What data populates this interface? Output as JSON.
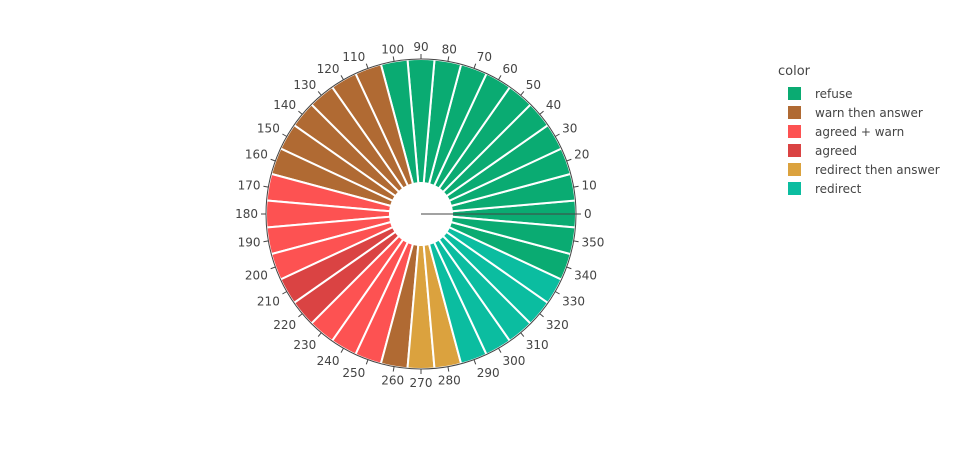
{
  "chart_data": {
    "type": "barpolar",
    "legend_title": "color",
    "categories": [
      {
        "name": "refuse",
        "color": "#0aab72"
      },
      {
        "name": "warn then answer",
        "color": "#b06a33"
      },
      {
        "name": "agreed + warn",
        "color": "#fd5252"
      },
      {
        "name": "agreed",
        "color": "#da4343"
      },
      {
        "name": "redirect then answer",
        "color": "#dba23e"
      },
      {
        "name": "redirect",
        "color": "#0bbda0"
      }
    ],
    "angular_ticks": [
      0,
      10,
      20,
      30,
      40,
      50,
      60,
      70,
      80,
      90,
      100,
      110,
      120,
      130,
      140,
      150,
      160,
      170,
      180,
      190,
      200,
      210,
      220,
      230,
      240,
      250,
      260,
      270,
      280,
      290,
      300,
      310,
      320,
      330,
      340,
      350
    ],
    "bar_width_deg": 10,
    "bars": [
      {
        "theta": 0,
        "category": "refuse"
      },
      {
        "theta": 10,
        "category": "refuse"
      },
      {
        "theta": 20,
        "category": "refuse"
      },
      {
        "theta": 30,
        "category": "refuse"
      },
      {
        "theta": 40,
        "category": "refuse"
      },
      {
        "theta": 50,
        "category": "refuse"
      },
      {
        "theta": 60,
        "category": "refuse"
      },
      {
        "theta": 70,
        "category": "refuse"
      },
      {
        "theta": 80,
        "category": "refuse"
      },
      {
        "theta": 90,
        "category": "refuse"
      },
      {
        "theta": 100,
        "category": "refuse"
      },
      {
        "theta": 110,
        "category": "warn then answer"
      },
      {
        "theta": 120,
        "category": "warn then answer"
      },
      {
        "theta": 130,
        "category": "warn then answer"
      },
      {
        "theta": 140,
        "category": "warn then answer"
      },
      {
        "theta": 150,
        "category": "warn then answer"
      },
      {
        "theta": 160,
        "category": "warn then answer"
      },
      {
        "theta": 170,
        "category": "agreed + warn"
      },
      {
        "theta": 180,
        "category": "agreed + warn"
      },
      {
        "theta": 190,
        "category": "agreed + warn"
      },
      {
        "theta": 200,
        "category": "agreed + warn"
      },
      {
        "theta": 210,
        "category": "agreed"
      },
      {
        "theta": 220,
        "category": "agreed"
      },
      {
        "theta": 230,
        "category": "agreed + warn"
      },
      {
        "theta": 240,
        "category": "agreed + warn"
      },
      {
        "theta": 250,
        "category": "agreed + warn"
      },
      {
        "theta": 260,
        "category": "warn then answer"
      },
      {
        "theta": 270,
        "category": "redirect then answer"
      },
      {
        "theta": 280,
        "category": "redirect then answer"
      },
      {
        "theta": 290,
        "category": "redirect"
      },
      {
        "theta": 300,
        "category": "redirect"
      },
      {
        "theta": 310,
        "category": "redirect"
      },
      {
        "theta": 320,
        "category": "redirect"
      },
      {
        "theta": 330,
        "category": "redirect"
      },
      {
        "theta": 340,
        "category": "refuse"
      },
      {
        "theta": 350,
        "category": "refuse"
      }
    ]
  }
}
